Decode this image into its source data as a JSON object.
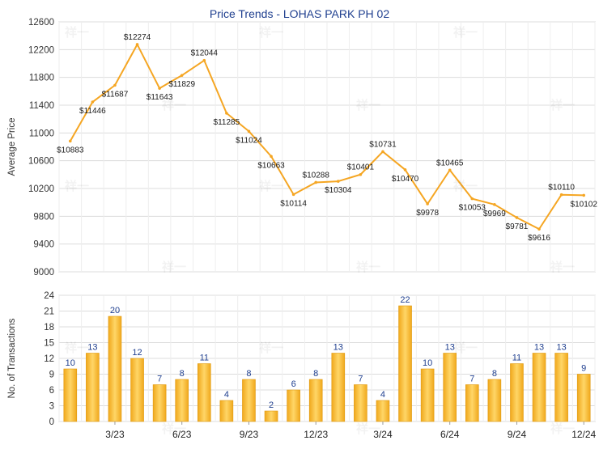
{
  "chart_data": [
    {
      "type": "line",
      "title": "Price Trends - LOHAS PARK PH 02",
      "ylabel": "Average Price",
      "ylim": [
        9000,
        12600
      ],
      "yticks": [
        9000,
        9400,
        9800,
        10200,
        10600,
        11000,
        11400,
        11800,
        12200,
        12600
      ],
      "grid": true,
      "color": "#f5a623",
      "values": [
        10883,
        11446,
        11687,
        12274,
        11643,
        11829,
        12044,
        11285,
        11024,
        10663,
        10114,
        10288,
        10304,
        10401,
        10731,
        10470,
        9978,
        10465,
        10053,
        9969,
        9781,
        9616,
        10110,
        10102
      ],
      "data_labels": [
        "$10883",
        "$11446",
        "$11687",
        "$12274",
        "$11643",
        "$11829",
        "$12044",
        "$11285",
        "$11024",
        "$10663",
        "$10114",
        "$10288",
        "$10304",
        "$10401",
        "$10731",
        "$10470",
        "$9978",
        "$10465",
        "$10053",
        "$9969",
        "$9781",
        "$9616",
        "$10110",
        "$10102"
      ]
    },
    {
      "type": "bar",
      "ylabel": "No. of Transactions",
      "ylim": [
        0,
        24
      ],
      "yticks": [
        0,
        3,
        6,
        9,
        12,
        15,
        18,
        21,
        24
      ],
      "grid": true,
      "color": "#f5a623",
      "values": [
        10,
        13,
        20,
        12,
        7,
        8,
        11,
        4,
        8,
        2,
        6,
        8,
        13,
        7,
        4,
        22,
        10,
        13,
        7,
        8,
        11,
        13,
        13,
        9
      ],
      "x_tick_labels": [
        {
          "index": 2,
          "label": "3/23"
        },
        {
          "index": 5,
          "label": "6/23"
        },
        {
          "index": 8,
          "label": "9/23"
        },
        {
          "index": 11,
          "label": "12/23"
        },
        {
          "index": 14,
          "label": "3/24"
        },
        {
          "index": 17,
          "label": "6/24"
        },
        {
          "index": 20,
          "label": "9/24"
        },
        {
          "index": 23,
          "label": "12/24"
        }
      ]
    }
  ],
  "watermark": "祥一"
}
